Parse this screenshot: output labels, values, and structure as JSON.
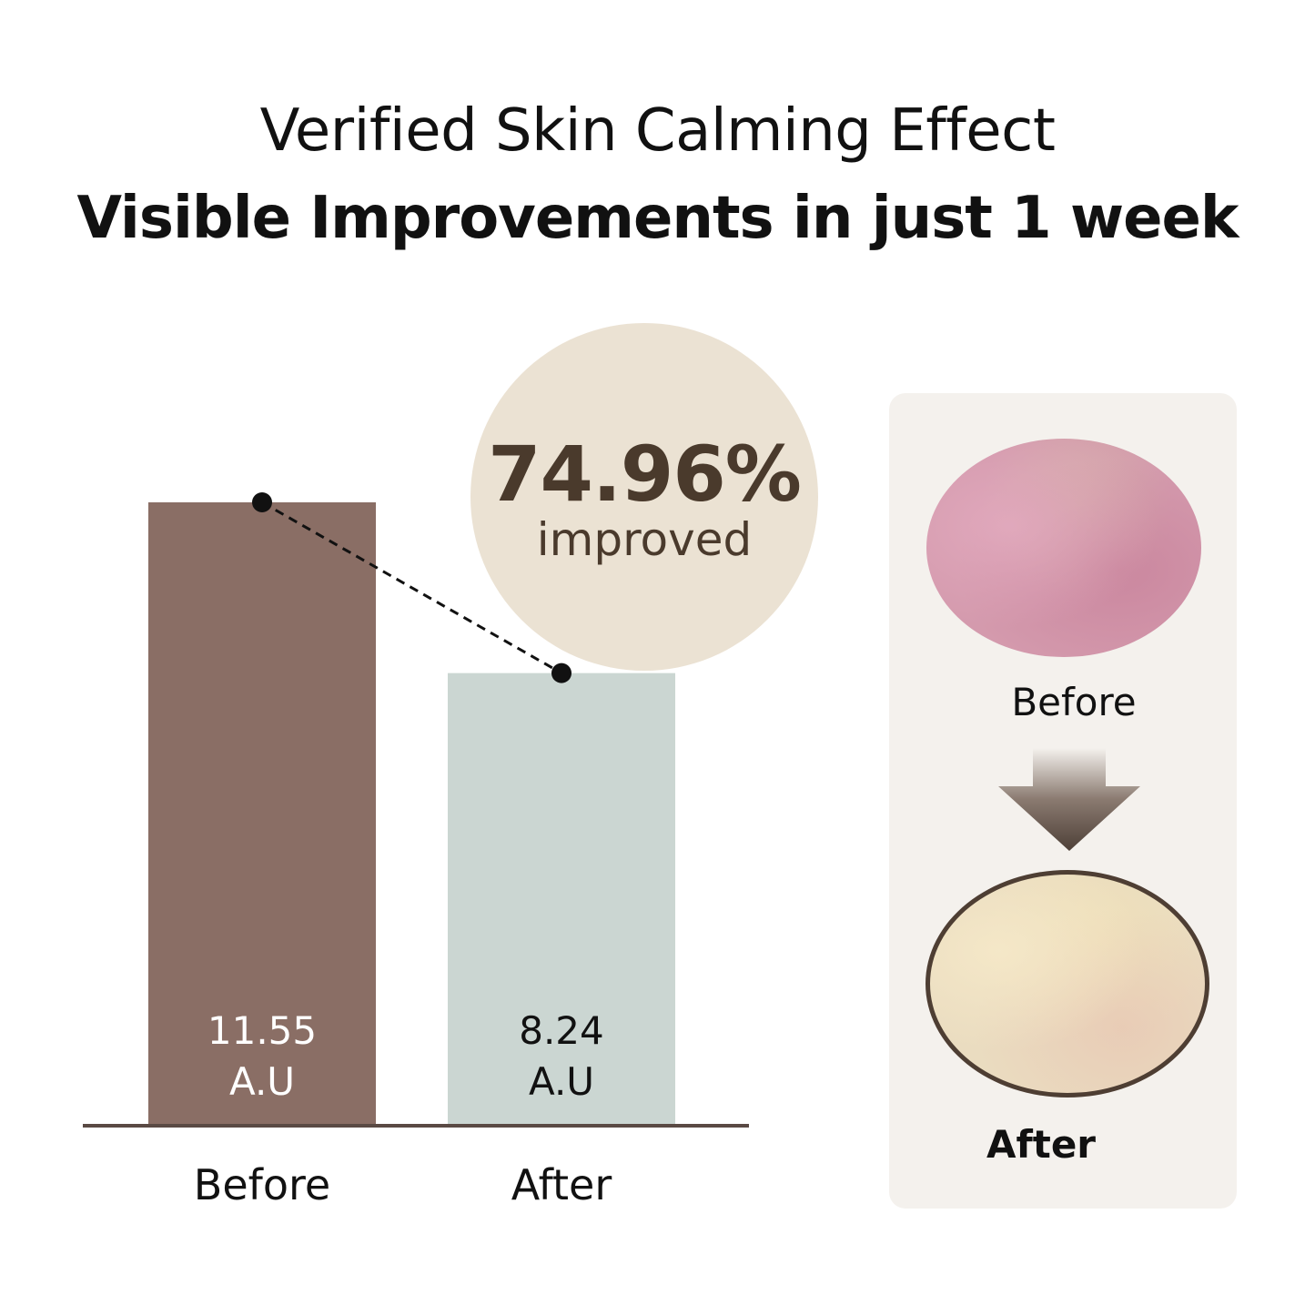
{
  "header": {
    "title_line1": "Verified Skin Calming Effect",
    "title_line2": "Visible Improvements in just 1 week"
  },
  "badge": {
    "percent": "74.96%",
    "label": "improved"
  },
  "chart_data": {
    "type": "bar",
    "categories": [
      "Before",
      "After"
    ],
    "values": [
      11.55,
      8.24
    ],
    "value_labels": [
      "11.55",
      "8.24"
    ],
    "unit": "A.U",
    "title": "",
    "xlabel": "",
    "ylabel": "",
    "ylim": [
      0,
      15.5
    ],
    "colors": [
      "#8a6e65",
      "#cbd6d2"
    ],
    "connector": "dashed line between bar tops"
  },
  "comparison_panel": {
    "before_label": "Before",
    "after_label": "After",
    "arrow_icon": "down-arrow-icon",
    "colors": {
      "before": "#d49aad",
      "after": "#eadcc0",
      "border": "#4e3e33"
    }
  }
}
